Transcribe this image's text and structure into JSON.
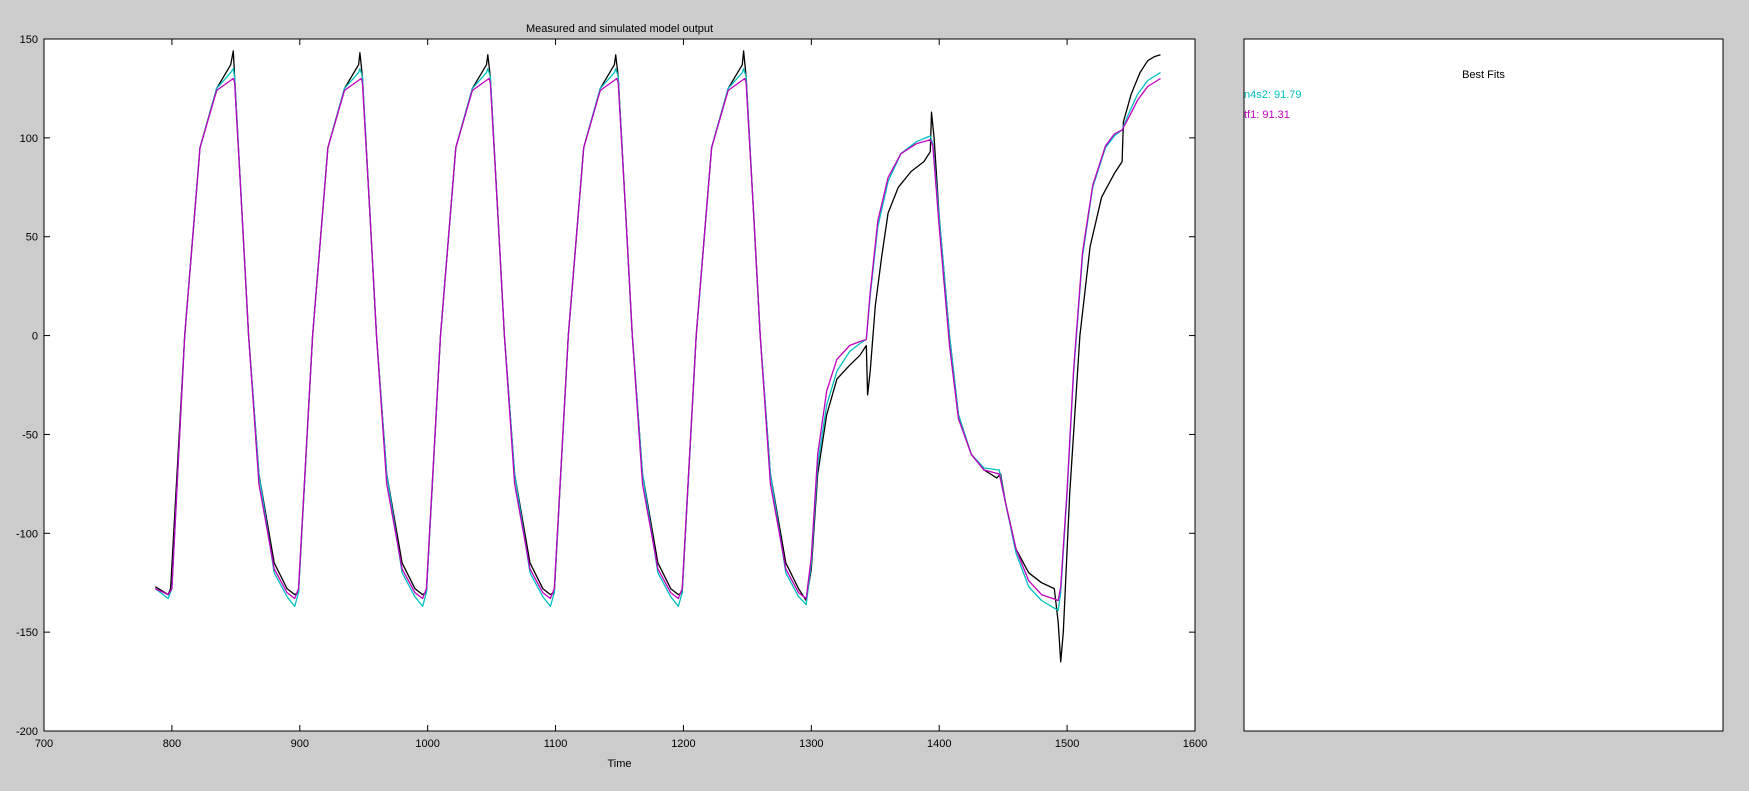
{
  "chart_data": {
    "type": "line",
    "title": "Measured and simulated model output",
    "xlabel": "Time",
    "ylabel": "",
    "xlim": [
      700,
      1600
    ],
    "ylim": [
      -200,
      150
    ],
    "xticks": [
      "700",
      "800",
      "900",
      "1000",
      "1100",
      "1200",
      "1300",
      "1400",
      "1500",
      "1600"
    ],
    "yticks": [
      "150",
      "100",
      "50",
      "0",
      "-50",
      "-100",
      "-150",
      "-200"
    ],
    "grid": false,
    "series": [
      {
        "color": "#000000",
        "points": [
          [
            787,
            -127
          ],
          [
            797,
            -131
          ],
          [
            799,
            -128
          ],
          [
            810,
            0
          ],
          [
            822,
            95
          ],
          [
            835,
            125
          ],
          [
            846,
            137
          ],
          [
            848,
            144
          ],
          [
            849,
            131
          ],
          [
            855,
            60
          ],
          [
            860,
            0
          ],
          [
            868,
            -70
          ],
          [
            880,
            -115
          ],
          [
            890,
            -128
          ],
          [
            896,
            -131
          ],
          [
            899,
            -130
          ],
          [
            910,
            0
          ],
          [
            922,
            95
          ],
          [
            935,
            125
          ],
          [
            946,
            137
          ],
          [
            947,
            143
          ],
          [
            949,
            131
          ],
          [
            955,
            60
          ],
          [
            960,
            0
          ],
          [
            968,
            -70
          ],
          [
            980,
            -115
          ],
          [
            990,
            -128
          ],
          [
            996,
            -131
          ],
          [
            999,
            -130
          ],
          [
            1010,
            0
          ],
          [
            1022,
            95
          ],
          [
            1035,
            125
          ],
          [
            1046,
            137
          ],
          [
            1047,
            142
          ],
          [
            1049,
            131
          ],
          [
            1055,
            60
          ],
          [
            1060,
            0
          ],
          [
            1068,
            -70
          ],
          [
            1080,
            -115
          ],
          [
            1090,
            -128
          ],
          [
            1096,
            -131
          ],
          [
            1099,
            -130
          ],
          [
            1110,
            0
          ],
          [
            1122,
            95
          ],
          [
            1135,
            125
          ],
          [
            1146,
            137
          ],
          [
            1147,
            142
          ],
          [
            1149,
            131
          ],
          [
            1155,
            60
          ],
          [
            1160,
            0
          ],
          [
            1168,
            -70
          ],
          [
            1180,
            -115
          ],
          [
            1190,
            -128
          ],
          [
            1196,
            -131
          ],
          [
            1199,
            -130
          ],
          [
            1210,
            0
          ],
          [
            1222,
            95
          ],
          [
            1235,
            125
          ],
          [
            1246,
            137
          ],
          [
            1247,
            144
          ],
          [
            1249,
            131
          ],
          [
            1255,
            60
          ],
          [
            1260,
            0
          ],
          [
            1268,
            -70
          ],
          [
            1280,
            -115
          ],
          [
            1290,
            -128
          ],
          [
            1296,
            -134
          ],
          [
            1300,
            -118
          ],
          [
            1305,
            -70
          ],
          [
            1312,
            -40
          ],
          [
            1320,
            -22
          ],
          [
            1330,
            -15
          ],
          [
            1338,
            -10
          ],
          [
            1343,
            -5
          ],
          [
            1344,
            -30
          ],
          [
            1346,
            -18
          ],
          [
            1350,
            15
          ],
          [
            1355,
            40
          ],
          [
            1360,
            62
          ],
          [
            1368,
            75
          ],
          [
            1378,
            83
          ],
          [
            1388,
            88
          ],
          [
            1393,
            93
          ],
          [
            1394,
            113
          ],
          [
            1396,
            100
          ],
          [
            1400,
            60
          ],
          [
            1408,
            0
          ],
          [
            1415,
            -40
          ],
          [
            1425,
            -60
          ],
          [
            1435,
            -68
          ],
          [
            1445,
            -72
          ],
          [
            1448,
            -70
          ],
          [
            1452,
            -85
          ],
          [
            1460,
            -108
          ],
          [
            1470,
            -120
          ],
          [
            1480,
            -125
          ],
          [
            1490,
            -128
          ],
          [
            1493,
            -145
          ],
          [
            1495,
            -165
          ],
          [
            1497,
            -150
          ],
          [
            1502,
            -80
          ],
          [
            1510,
            0
          ],
          [
            1518,
            45
          ],
          [
            1527,
            70
          ],
          [
            1537,
            82
          ],
          [
            1543,
            88
          ],
          [
            1544,
            108
          ],
          [
            1550,
            122
          ],
          [
            1557,
            133
          ],
          [
            1563,
            139
          ],
          [
            1568,
            141
          ],
          [
            1573,
            142
          ]
        ]
      },
      {
        "name": "n4s2",
        "color": "#00bfbf",
        "points": [
          [
            787,
            -128
          ],
          [
            797,
            -133
          ],
          [
            800,
            -128
          ],
          [
            810,
            0
          ],
          [
            822,
            95
          ],
          [
            835,
            125
          ],
          [
            846,
            133
          ],
          [
            848,
            135
          ],
          [
            849,
            131
          ],
          [
            855,
            60
          ],
          [
            860,
            0
          ],
          [
            868,
            -70
          ],
          [
            880,
            -120
          ],
          [
            890,
            -132
          ],
          [
            896,
            -137
          ],
          [
            899,
            -130
          ],
          [
            910,
            0
          ],
          [
            922,
            95
          ],
          [
            935,
            125
          ],
          [
            946,
            133
          ],
          [
            947,
            135
          ],
          [
            949,
            131
          ],
          [
            955,
            60
          ],
          [
            960,
            0
          ],
          [
            968,
            -70
          ],
          [
            980,
            -120
          ],
          [
            990,
            -132
          ],
          [
            996,
            -137
          ],
          [
            999,
            -130
          ],
          [
            1010,
            0
          ],
          [
            1022,
            95
          ],
          [
            1035,
            125
          ],
          [
            1046,
            133
          ],
          [
            1047,
            135
          ],
          [
            1049,
            131
          ],
          [
            1055,
            60
          ],
          [
            1060,
            0
          ],
          [
            1068,
            -70
          ],
          [
            1080,
            -120
          ],
          [
            1090,
            -132
          ],
          [
            1096,
            -137
          ],
          [
            1099,
            -130
          ],
          [
            1110,
            0
          ],
          [
            1122,
            95
          ],
          [
            1135,
            125
          ],
          [
            1146,
            133
          ],
          [
            1147,
            135
          ],
          [
            1149,
            131
          ],
          [
            1155,
            60
          ],
          [
            1160,
            0
          ],
          [
            1168,
            -70
          ],
          [
            1180,
            -120
          ],
          [
            1190,
            -132
          ],
          [
            1196,
            -137
          ],
          [
            1199,
            -130
          ],
          [
            1210,
            0
          ],
          [
            1222,
            95
          ],
          [
            1235,
            125
          ],
          [
            1246,
            133
          ],
          [
            1247,
            135
          ],
          [
            1249,
            131
          ],
          [
            1255,
            60
          ],
          [
            1260,
            0
          ],
          [
            1268,
            -70
          ],
          [
            1280,
            -120
          ],
          [
            1290,
            -132
          ],
          [
            1296,
            -136
          ],
          [
            1300,
            -115
          ],
          [
            1305,
            -65
          ],
          [
            1312,
            -35
          ],
          [
            1320,
            -18
          ],
          [
            1330,
            -8
          ],
          [
            1338,
            -4
          ],
          [
            1343,
            -2
          ],
          [
            1346,
            20
          ],
          [
            1352,
            55
          ],
          [
            1360,
            78
          ],
          [
            1370,
            92
          ],
          [
            1382,
            98
          ],
          [
            1393,
            101
          ],
          [
            1395,
            97
          ],
          [
            1400,
            60
          ],
          [
            1408,
            0
          ],
          [
            1415,
            -40
          ],
          [
            1425,
            -60
          ],
          [
            1435,
            -67
          ],
          [
            1447,
            -68
          ],
          [
            1452,
            -85
          ],
          [
            1460,
            -110
          ],
          [
            1470,
            -127
          ],
          [
            1480,
            -134
          ],
          [
            1493,
            -139
          ],
          [
            1495,
            -130
          ],
          [
            1500,
            -80
          ],
          [
            1505,
            -20
          ],
          [
            1512,
            40
          ],
          [
            1520,
            75
          ],
          [
            1530,
            95
          ],
          [
            1537,
            101
          ],
          [
            1543,
            104
          ],
          [
            1548,
            112
          ],
          [
            1555,
            122
          ],
          [
            1563,
            129
          ],
          [
            1573,
            133
          ]
        ]
      },
      {
        "name": "tf1",
        "color": "#bf00bf",
        "points": [
          [
            787,
            -128
          ],
          [
            797,
            -131
          ],
          [
            800,
            -128
          ],
          [
            810,
            0
          ],
          [
            822,
            95
          ],
          [
            835,
            124
          ],
          [
            848,
            130
          ],
          [
            849,
            128
          ],
          [
            855,
            60
          ],
          [
            860,
            0
          ],
          [
            868,
            -75
          ],
          [
            880,
            -118
          ],
          [
            890,
            -130
          ],
          [
            896,
            -133
          ],
          [
            899,
            -128
          ],
          [
            910,
            0
          ],
          [
            922,
            95
          ],
          [
            935,
            124
          ],
          [
            948,
            130
          ],
          [
            949,
            128
          ],
          [
            955,
            60
          ],
          [
            960,
            0
          ],
          [
            968,
            -75
          ],
          [
            980,
            -118
          ],
          [
            990,
            -130
          ],
          [
            996,
            -133
          ],
          [
            999,
            -128
          ],
          [
            1010,
            0
          ],
          [
            1022,
            95
          ],
          [
            1035,
            124
          ],
          [
            1048,
            130
          ],
          [
            1049,
            128
          ],
          [
            1055,
            60
          ],
          [
            1060,
            0
          ],
          [
            1068,
            -75
          ],
          [
            1080,
            -118
          ],
          [
            1090,
            -130
          ],
          [
            1096,
            -133
          ],
          [
            1099,
            -128
          ],
          [
            1110,
            0
          ],
          [
            1122,
            95
          ],
          [
            1135,
            124
          ],
          [
            1148,
            130
          ],
          [
            1149,
            128
          ],
          [
            1155,
            60
          ],
          [
            1160,
            0
          ],
          [
            1168,
            -75
          ],
          [
            1180,
            -118
          ],
          [
            1190,
            -130
          ],
          [
            1196,
            -133
          ],
          [
            1199,
            -128
          ],
          [
            1210,
            0
          ],
          [
            1222,
            95
          ],
          [
            1235,
            124
          ],
          [
            1248,
            130
          ],
          [
            1249,
            128
          ],
          [
            1255,
            60
          ],
          [
            1260,
            0
          ],
          [
            1268,
            -75
          ],
          [
            1280,
            -118
          ],
          [
            1290,
            -130
          ],
          [
            1296,
            -133
          ],
          [
            1300,
            -112
          ],
          [
            1305,
            -60
          ],
          [
            1312,
            -28
          ],
          [
            1320,
            -12
          ],
          [
            1330,
            -5
          ],
          [
            1338,
            -3
          ],
          [
            1343,
            -2
          ],
          [
            1346,
            22
          ],
          [
            1352,
            58
          ],
          [
            1360,
            80
          ],
          [
            1370,
            92
          ],
          [
            1382,
            97
          ],
          [
            1393,
            99
          ],
          [
            1395,
            96
          ],
          [
            1400,
            55
          ],
          [
            1408,
            -5
          ],
          [
            1415,
            -42
          ],
          [
            1425,
            -60
          ],
          [
            1435,
            -68
          ],
          [
            1447,
            -70
          ],
          [
            1452,
            -85
          ],
          [
            1460,
            -108
          ],
          [
            1470,
            -124
          ],
          [
            1480,
            -131
          ],
          [
            1493,
            -134
          ],
          [
            1495,
            -127
          ],
          [
            1500,
            -78
          ],
          [
            1505,
            -18
          ],
          [
            1512,
            42
          ],
          [
            1520,
            76
          ],
          [
            1530,
            96
          ],
          [
            1537,
            102
          ],
          [
            1543,
            104
          ],
          [
            1548,
            110
          ],
          [
            1555,
            119
          ],
          [
            1563,
            126
          ],
          [
            1573,
            130
          ]
        ]
      }
    ]
  },
  "legend": {
    "title": "Best Fits",
    "entries": [
      {
        "label": "n4s2: 91.79",
        "color": "#00bfbf"
      },
      {
        "label": "tf1: 91.31",
        "color": "#bf00bf"
      }
    ]
  }
}
